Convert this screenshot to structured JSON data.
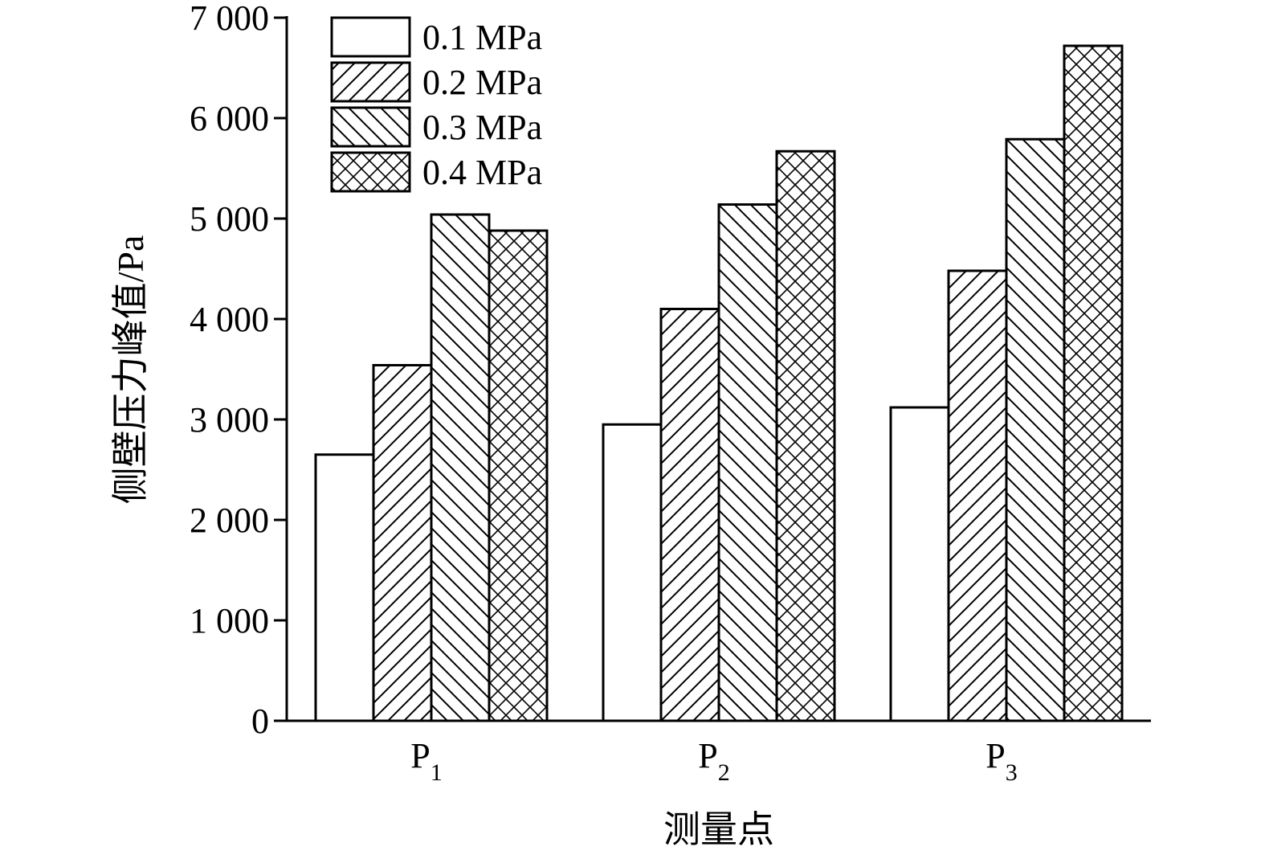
{
  "chart_data": {
    "type": "bar",
    "categories": [
      "P1",
      "P2",
      "P3"
    ],
    "category_labels": [
      {
        "main": "P",
        "sub": "1"
      },
      {
        "main": "P",
        "sub": "2"
      },
      {
        "main": "P",
        "sub": "3"
      }
    ],
    "series": [
      {
        "name": "0.1 MPa",
        "pattern": "none",
        "values": [
          2650,
          2950,
          3120
        ]
      },
      {
        "name": "0.2 MPa",
        "pattern": "diagonal-forward",
        "values": [
          3540,
          4100,
          4480
        ]
      },
      {
        "name": "0.3 MPa",
        "pattern": "diagonal-backward",
        "values": [
          5040,
          5140,
          5790
        ]
      },
      {
        "name": "0.4 MPa",
        "pattern": "crosshatch",
        "values": [
          4880,
          5670,
          6720
        ]
      }
    ],
    "title": "",
    "xlabel": "测量点",
    "ylabel": "侧壁压力峰值/Pa",
    "ylim": [
      0,
      7000
    ],
    "yticks": [
      0,
      1000,
      2000,
      3000,
      4000,
      5000,
      6000,
      7000
    ],
    "ytick_labels": [
      "0",
      "1 000",
      "2 000",
      "3 000",
      "4 000",
      "5 000",
      "6 000",
      "7 000"
    ],
    "grid": false,
    "legend_position": "top-left",
    "colors": {
      "stroke": "#000000",
      "fill": "#ffffff"
    }
  }
}
